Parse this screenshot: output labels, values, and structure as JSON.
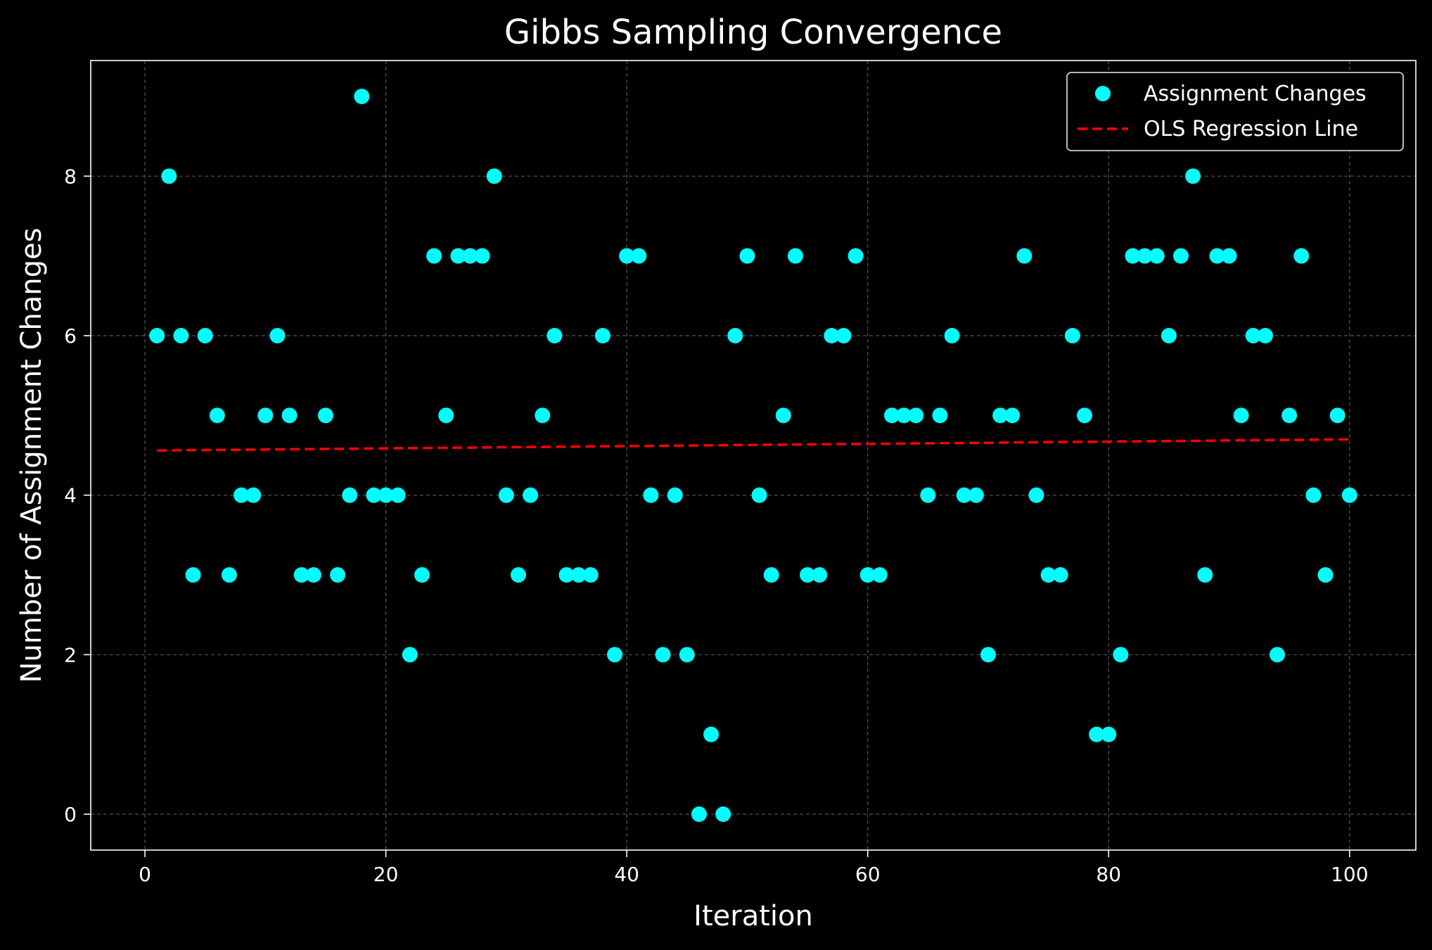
{
  "chart_data": {
    "type": "scatter",
    "title": "Gibbs Sampling Convergence",
    "xlabel": "Iteration",
    "ylabel": "Number of Assignment Changes",
    "xlim": [
      -4.5,
      105.5
    ],
    "ylim": [
      -0.45,
      9.45
    ],
    "xticks": [
      0,
      20,
      40,
      60,
      80,
      100
    ],
    "yticks": [
      0,
      2,
      4,
      6,
      8
    ],
    "grid": true,
    "legend_position": "top-right",
    "background": "#000000",
    "series": [
      {
        "name": "Assignment Changes",
        "kind": "points",
        "color": "#00ffff",
        "x": [
          1,
          2,
          3,
          4,
          5,
          6,
          7,
          8,
          9,
          10,
          11,
          12,
          13,
          14,
          15,
          16,
          17,
          18,
          19,
          20,
          21,
          22,
          23,
          24,
          25,
          26,
          27,
          28,
          29,
          30,
          31,
          32,
          33,
          34,
          35,
          36,
          37,
          38,
          39,
          40,
          41,
          42,
          43,
          44,
          45,
          46,
          47,
          48,
          49,
          50,
          51,
          52,
          53,
          54,
          55,
          56,
          57,
          58,
          59,
          60,
          61,
          62,
          63,
          64,
          65,
          66,
          67,
          68,
          69,
          70,
          71,
          72,
          73,
          74,
          75,
          76,
          77,
          78,
          79,
          80,
          81,
          82,
          83,
          84,
          85,
          86,
          87,
          88,
          89,
          90,
          91,
          92,
          93,
          94,
          95,
          96,
          97,
          98,
          99,
          100
        ],
        "y": [
          6,
          8,
          6,
          3,
          6,
          5,
          3,
          4,
          4,
          5,
          6,
          5,
          3,
          3,
          5,
          3,
          4,
          9,
          4,
          4,
          4,
          2,
          3,
          7,
          5,
          7,
          7,
          7,
          8,
          4,
          3,
          4,
          5,
          6,
          3,
          3,
          3,
          6,
          2,
          7,
          7,
          4,
          2,
          4,
          2,
          0,
          1,
          0,
          6,
          7,
          4,
          3,
          5,
          7,
          3,
          3,
          6,
          6,
          7,
          3,
          3,
          5,
          5,
          5,
          4,
          5,
          6,
          4,
          4,
          2,
          5,
          5,
          7,
          4,
          3,
          3,
          6,
          5,
          1,
          1,
          2,
          7,
          7,
          7,
          6,
          7,
          8,
          3,
          7,
          7,
          5,
          6,
          6,
          2,
          5,
          7,
          4,
          3,
          5,
          4
        ]
      },
      {
        "name": "OLS Regression Line",
        "kind": "dashed-line",
        "color": "#ff0000",
        "x": [
          1,
          100
        ],
        "y": [
          4.56,
          4.7
        ]
      }
    ]
  }
}
